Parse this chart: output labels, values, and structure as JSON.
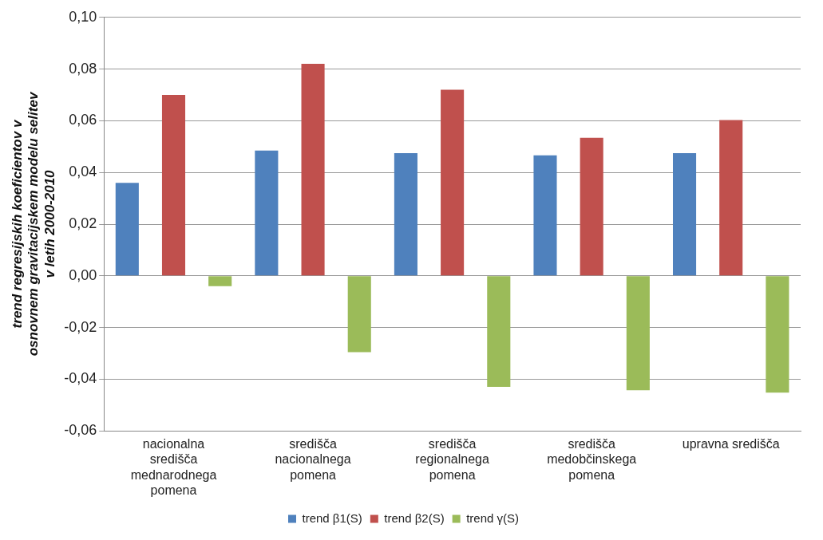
{
  "chart_data": {
    "type": "bar",
    "ylabel": "trend regresijskih koeficientov v osnovnem gravitacijskem modelu selitev v letih 2000-2010",
    "categories": [
      "nacionalna središča mednarodnega pomena",
      "središča nacionalnega pomena",
      "središča regionalnega pomena",
      "središča medobčinskega pomena",
      "upravna središča"
    ],
    "series": [
      {
        "name": "trend β1(S)",
        "color": "#4f81bd",
        "values": [
          0.036,
          0.0485,
          0.0475,
          0.0466,
          0.0475
        ]
      },
      {
        "name": "trend β2(S)",
        "color": "#c0504d",
        "values": [
          0.07,
          0.082,
          0.072,
          0.0534,
          0.0603
        ]
      },
      {
        "name": "trend γ(S)",
        "color": "#9bbb59",
        "values": [
          -0.004,
          -0.0295,
          -0.043,
          -0.0443,
          -0.0452
        ]
      }
    ],
    "ylim": [
      -0.06,
      0.1
    ],
    "yticks": [
      {
        "value": -0.06,
        "label": "-0,06"
      },
      {
        "value": -0.04,
        "label": "-0,04"
      },
      {
        "value": -0.02,
        "label": "-0,02"
      },
      {
        "value": 0,
        "label": "0,00"
      },
      {
        "value": 0.02,
        "label": "0,02"
      },
      {
        "value": 0.04,
        "label": "0,04"
      },
      {
        "value": 0.06,
        "label": "0,06"
      },
      {
        "value": 0.08,
        "label": "0,08"
      },
      {
        "value": 0.1,
        "label": "0,10"
      }
    ],
    "grid": "y",
    "legend": "bottom"
  }
}
